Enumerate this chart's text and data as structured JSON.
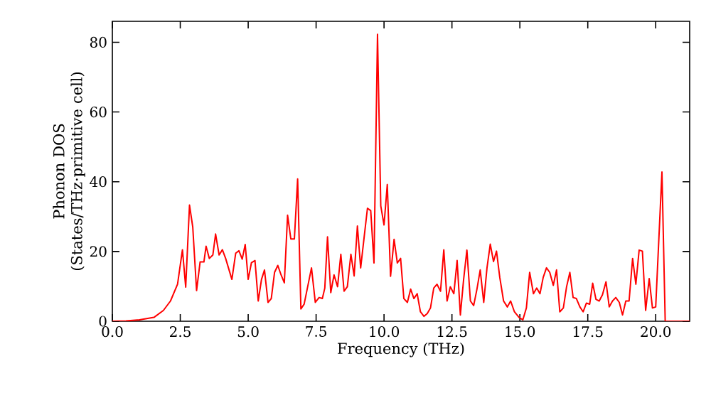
{
  "chart_data": {
    "type": "line",
    "xlabel": "Frequency (THz)",
    "ylabel": "Phonon DOS (States/THz·primitive cell)",
    "xlim": [
      0,
      21.25
    ],
    "ylim": [
      0,
      86
    ],
    "xticks": [
      {
        "value": 0,
        "label": "0.0"
      },
      {
        "value": 2.5,
        "label": "2.5"
      },
      {
        "value": 5,
        "label": "5.0"
      },
      {
        "value": 7.5,
        "label": "7.5"
      },
      {
        "value": 10,
        "label": "10.0"
      },
      {
        "value": 12.5,
        "label": "12.5"
      },
      {
        "value": 15,
        "label": "15.0"
      },
      {
        "value": 17.5,
        "label": "17.5"
      },
      {
        "value": 20,
        "label": "20.0"
      }
    ],
    "yticks": [
      0,
      20,
      40,
      60,
      80
    ],
    "grid": false,
    "marker": "none",
    "line_style": "solid",
    "series": [
      {
        "color": "#ff0000",
        "x": [
          0,
          0.5,
          1.0,
          1.53,
          1.88,
          2.14,
          2.4,
          2.58,
          2.7,
          2.84,
          2.96,
          3.1,
          3.23,
          3.37,
          3.45,
          3.57,
          3.7,
          3.8,
          3.93,
          4.05,
          4.17,
          4.4,
          4.54,
          4.66,
          4.78,
          4.89,
          5.0,
          5.12,
          5.25,
          5.37,
          5.49,
          5.6,
          5.73,
          5.85,
          5.97,
          6.09,
          6.21,
          6.33,
          6.45,
          6.57,
          6.7,
          6.82,
          6.94,
          7.06,
          7.33,
          7.47,
          7.61,
          7.73,
          7.82,
          7.92,
          8.04,
          8.16,
          8.29,
          8.41,
          8.53,
          8.65,
          8.78,
          8.9,
          9.02,
          9.14,
          9.27,
          9.39,
          9.51,
          9.63,
          9.76,
          9.88,
          10.0,
          10.12,
          10.24,
          10.37,
          10.49,
          10.61,
          10.73,
          10.86,
          10.98,
          11.1,
          11.22,
          11.34,
          11.47,
          11.59,
          11.71,
          11.83,
          11.95,
          12.08,
          12.2,
          12.32,
          12.44,
          12.57,
          12.69,
          12.81,
          12.93,
          13.05,
          13.18,
          13.3,
          13.42,
          13.54,
          13.67,
          13.79,
          13.91,
          14.03,
          14.14,
          14.26,
          14.4,
          14.54,
          14.66,
          14.8,
          14.97,
          15.11,
          15.24,
          15.36,
          15.5,
          15.62,
          15.74,
          15.86,
          15.98,
          16.1,
          16.23,
          16.35,
          16.47,
          16.6,
          16.72,
          16.84,
          16.96,
          17.08,
          17.21,
          17.33,
          17.45,
          17.57,
          17.68,
          17.8,
          17.92,
          18.04,
          18.17,
          18.29,
          18.41,
          18.53,
          18.66,
          18.78,
          18.9,
          19.02,
          19.15,
          19.27,
          19.39,
          19.51,
          19.63,
          19.76,
          19.88,
          20.0,
          20.23,
          20.35,
          21.25
        ],
        "values": [
          0,
          0.1,
          0.4,
          1.1,
          3.1,
          5.8,
          10.6,
          20.5,
          9.8,
          33.3,
          27,
          8.8,
          17,
          17,
          21.5,
          18,
          19,
          25,
          19,
          20.5,
          18,
          12,
          19.5,
          20.2,
          17.8,
          22,
          12,
          16.8,
          17.4,
          5.8,
          12,
          14.7,
          5.4,
          6.5,
          14,
          16,
          13.3,
          11,
          30.4,
          23.6,
          23.6,
          40.8,
          3.5,
          4.9,
          15.3,
          5.4,
          6.8,
          6.5,
          9.5,
          24.2,
          8.2,
          13.3,
          9.9,
          19.2,
          8.6,
          9.9,
          19.2,
          13,
          27.3,
          15.3,
          24.2,
          32.4,
          31.7,
          16.7,
          82.3,
          33.1,
          27.6,
          39.2,
          12.9,
          23.5,
          16.7,
          18,
          6.5,
          5.4,
          9.2,
          6.5,
          7.9,
          2.7,
          1.4,
          2.2,
          3.8,
          9.5,
          10.6,
          8.6,
          20.5,
          5.8,
          9.9,
          7.9,
          17.4,
          1.8,
          12,
          20.4,
          5.8,
          4.5,
          9.2,
          14.7,
          5.4,
          15.3,
          22.1,
          17.1,
          20.1,
          12.6,
          5.8,
          4.1,
          5.8,
          2.7,
          1.1,
          0.4,
          3.8,
          14,
          7.9,
          9.5,
          7.9,
          12.6,
          15.3,
          14,
          10.3,
          14.7,
          2.7,
          3.8,
          9.9,
          14,
          6.8,
          6.5,
          4.1,
          2.7,
          5.2,
          4.9,
          10.9,
          6.3,
          5.8,
          7.6,
          11.3,
          4.1,
          5.8,
          6.8,
          5.4,
          1.8,
          5.8,
          5.8,
          18,
          10.6,
          20.4,
          20.1,
          3.1,
          12.2,
          3.8,
          4.1,
          42.8,
          0,
          0
        ]
      }
    ]
  }
}
